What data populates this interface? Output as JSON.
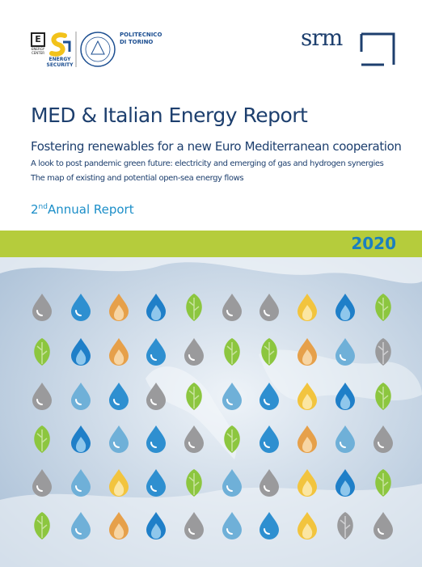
{
  "logos": {
    "energy_center": "ENERGY CENTER",
    "energy_security": "ENERGY SECURITY",
    "politecnico": [
      "POLITECNICO",
      "DI TORINO"
    ],
    "srm": "srm"
  },
  "title": "MED & Italian Energy Report",
  "subtitle": "Fostering renewables for a new Euro Mediterranean cooperation",
  "lines": [
    "A look to post pandemic green future: electricity and emerging of gas and hydrogen synergies",
    "The map of existing and potential open-sea energy flows"
  ],
  "edition": {
    "number": "2",
    "suffix": "nd",
    "text": "Annual Report"
  },
  "year": "2020"
}
